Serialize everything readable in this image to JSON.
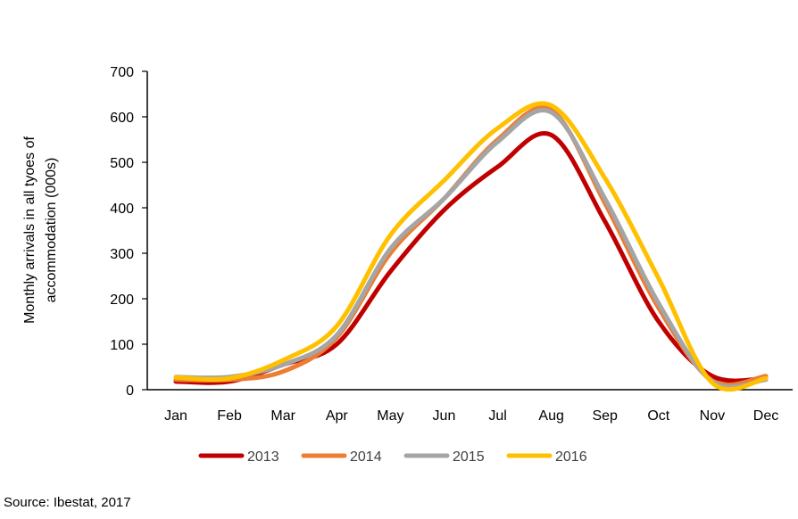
{
  "chart_data": {
    "type": "line",
    "title": "",
    "xlabel": "",
    "ylabel": "Monthly arrivals in all tyoes of accommodation (000s)",
    "ylabel_lines": [
      "Monthly arrivals in all tyoes of",
      "accommodation (000s)"
    ],
    "ylim": [
      0,
      700
    ],
    "yticks": [
      0,
      100,
      200,
      300,
      400,
      500,
      600,
      700
    ],
    "grid": false,
    "legend": "bottom",
    "categories": [
      "Jan",
      "Feb",
      "Mar",
      "Apr",
      "May",
      "Jun",
      "Jul",
      "Aug",
      "Sep",
      "Oct",
      "Nov",
      "Dec"
    ],
    "series": [
      {
        "name": "2013",
        "color": "#C00000",
        "values": [
          18,
          18,
          55,
          100,
          260,
          395,
          490,
          560,
          370,
          150,
          30,
          25
        ]
      },
      {
        "name": "2014",
        "color": "#ED7D31",
        "values": [
          22,
          22,
          40,
          115,
          300,
          420,
          550,
          615,
          410,
          180,
          20,
          30
        ]
      },
      {
        "name": "2015",
        "color": "#A5A5A5",
        "values": [
          28,
          28,
          55,
          120,
          310,
          420,
          545,
          610,
          420,
          190,
          18,
          22
        ]
      },
      {
        "name": "2016",
        "color": "#FFC000",
        "values": [
          27,
          25,
          65,
          140,
          340,
          460,
          575,
          625,
          465,
          245,
          15,
          25
        ]
      }
    ]
  },
  "source": "Source: Ibestat, 2017"
}
